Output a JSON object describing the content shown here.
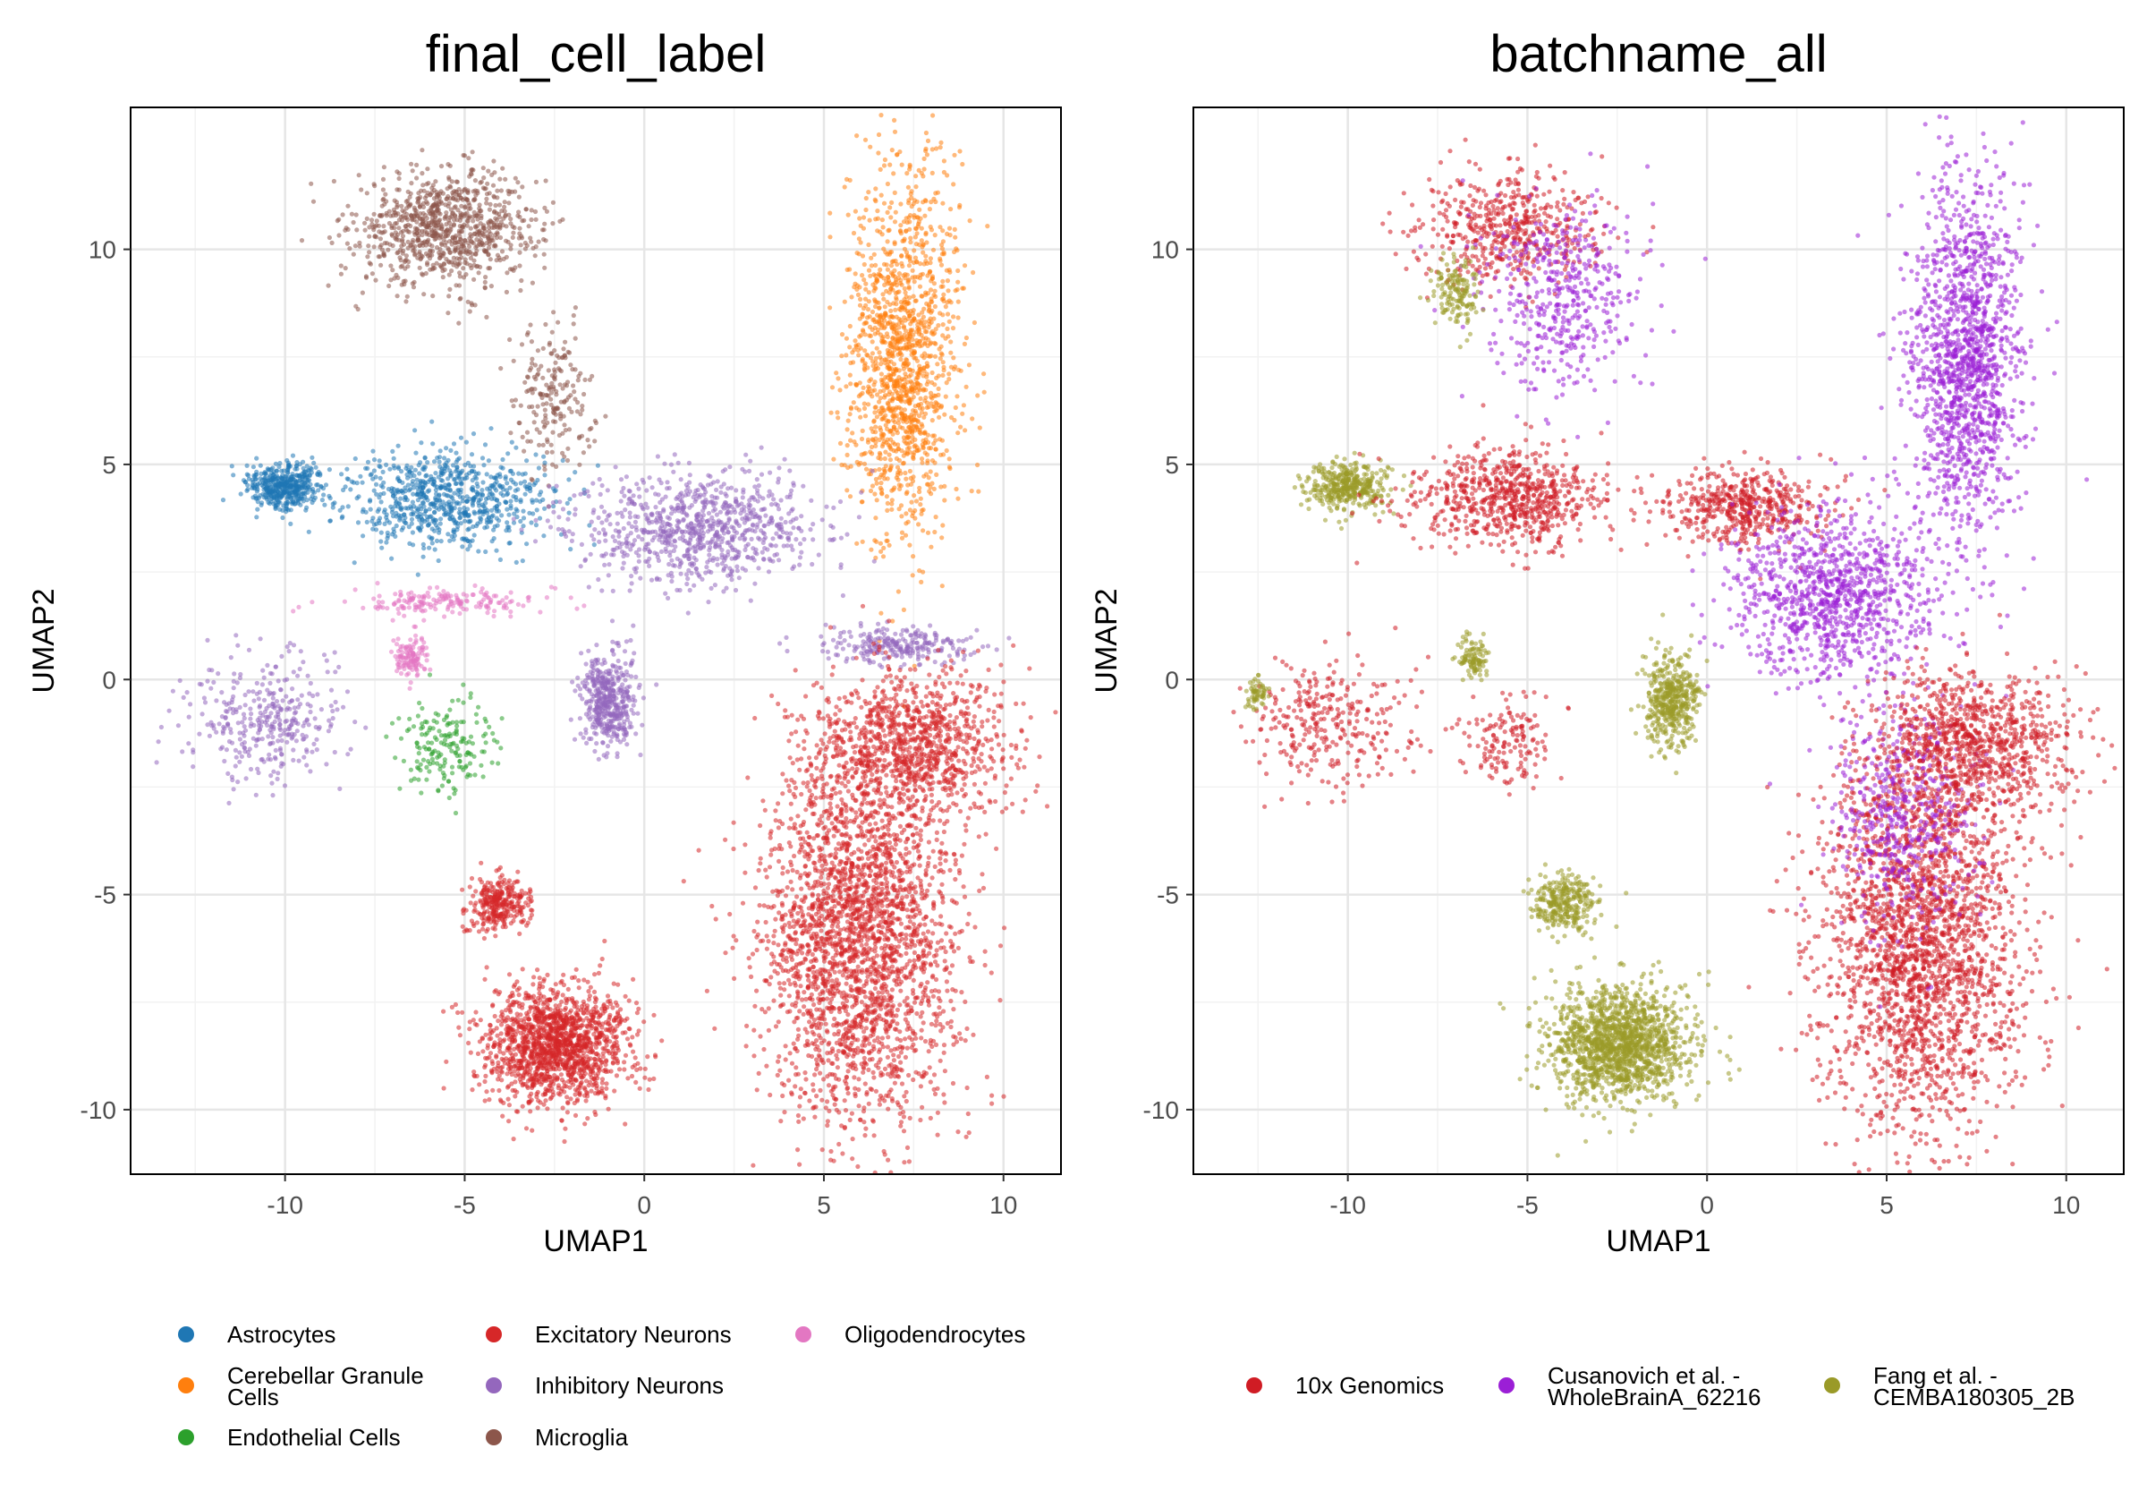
{
  "colors": {
    "Astrocytes": "#1f77b4",
    "Cerebellar Granule Cells": "#ff7f0e",
    "Endothelial Cells": "#2ca02c",
    "Excitatory Neurons": "#d62728",
    "Inhibitory Neurons": "#9467bd",
    "Microglia": "#8c564b",
    "Oligodendrocytes": "#e377c2",
    "10x Genomics": "#d01c24",
    "Cusanovich": "#9b1fd6",
    "Fang": "#9a9a28"
  },
  "chart_data": [
    {
      "type": "scatter",
      "title": "final_cell_label",
      "xlabel": "UMAP1",
      "ylabel": "UMAP2",
      "xlim": [
        -14.3,
        11.6
      ],
      "ylim": [
        -11.5,
        13.3
      ],
      "xticks": [
        -10,
        -5,
        0,
        5,
        10
      ],
      "yticks": [
        -10,
        -5,
        0,
        5,
        10
      ],
      "xtick_labels": [
        "-10",
        "-5",
        "0",
        "5",
        "10"
      ],
      "ytick_labels": [
        "-10",
        "-5",
        "0",
        "5",
        "10"
      ],
      "grid": true,
      "legend_position": "bottom",
      "legend": [
        {
          "label": "Astrocytes",
          "color": "#1f77b4"
        },
        {
          "label": "Cerebellar Granule Cells",
          "color": "#ff7f0e"
        },
        {
          "label": "Endothelial Cells",
          "color": "#2ca02c"
        },
        {
          "label": "Excitatory Neurons",
          "color": "#d62728"
        },
        {
          "label": "Inhibitory Neurons",
          "color": "#9467bd"
        },
        {
          "label": "Microglia",
          "color": "#8c564b"
        },
        {
          "label": "Oligodendrocytes",
          "color": "#e377c2"
        }
      ],
      "clusters": [
        {
          "label": "Microglia",
          "center": [
            -5.5,
            10.5
          ],
          "spread": [
            2.3,
            1.2
          ],
          "n": 900
        },
        {
          "label": "Microglia",
          "center": [
            -2.5,
            6.5
          ],
          "spread": [
            1.0,
            1.5
          ],
          "n": 200
        },
        {
          "label": "Astrocytes",
          "center": [
            -10,
            4.5
          ],
          "spread": [
            1.0,
            0.5
          ],
          "n": 450
        },
        {
          "label": "Astrocytes",
          "center": [
            -5.5,
            4.2
          ],
          "spread": [
            2.5,
            1.0
          ],
          "n": 750
        },
        {
          "label": "Cerebellar Granule Cells",
          "center": [
            7.2,
            7.5
          ],
          "spread": [
            1.4,
            3.8
          ],
          "n": 1400
        },
        {
          "label": "Inhibitory Neurons",
          "center": [
            -10.5,
            -1
          ],
          "spread": [
            2.0,
            1.3
          ],
          "n": 350
        },
        {
          "label": "Inhibitory Neurons",
          "center": [
            1.5,
            3.5
          ],
          "spread": [
            3.0,
            1.2
          ],
          "n": 850
        },
        {
          "label": "Inhibitory Neurons",
          "center": [
            -1,
            -0.5
          ],
          "spread": [
            0.7,
            1.0
          ],
          "n": 450
        },
        {
          "label": "Inhibitory Neurons",
          "center": [
            7,
            0.8
          ],
          "spread": [
            2.0,
            0.4
          ],
          "n": 250
        },
        {
          "label": "Oligodendrocytes",
          "center": [
            -5.5,
            1.8
          ],
          "spread": [
            2.5,
            0.3
          ],
          "n": 180
        },
        {
          "label": "Oligodendrocytes",
          "center": [
            -6.5,
            0.5
          ],
          "spread": [
            0.4,
            0.4
          ],
          "n": 120
        },
        {
          "label": "Endothelial Cells",
          "center": [
            -5.5,
            -1.5
          ],
          "spread": [
            1.2,
            1.0
          ],
          "n": 180
        },
        {
          "label": "Excitatory Neurons",
          "center": [
            -2.5,
            -8.5
          ],
          "spread": [
            1.8,
            1.2
          ],
          "n": 1500
        },
        {
          "label": "Excitatory Neurons",
          "center": [
            -4,
            -5.2
          ],
          "spread": [
            0.8,
            0.6
          ],
          "n": 300
        },
        {
          "label": "Excitatory Neurons",
          "center": [
            6,
            -6
          ],
          "spread": [
            2.5,
            4.0
          ],
          "n": 2600
        },
        {
          "label": "Excitatory Neurons",
          "center": [
            7.5,
            -1.5
          ],
          "spread": [
            2.5,
            1.5
          ],
          "n": 1000
        }
      ]
    },
    {
      "type": "scatter",
      "title": "batchname_all",
      "xlabel": "UMAP1",
      "ylabel": "UMAP2",
      "xlim": [
        -14.3,
        11.6
      ],
      "ylim": [
        -11.5,
        13.3
      ],
      "xticks": [
        -10,
        -5,
        0,
        5,
        10
      ],
      "yticks": [
        -10,
        -5,
        0,
        5,
        10
      ],
      "xtick_labels": [
        "-10",
        "-5",
        "0",
        "5",
        "10"
      ],
      "ytick_labels": [
        "-10",
        "-5",
        "0",
        "5",
        "10"
      ],
      "grid": true,
      "legend_position": "bottom",
      "legend": [
        {
          "label": "10x Genomics",
          "color": "#d01c24"
        },
        {
          "label": "Cusanovich et al. - WholeBrainA_62216",
          "color": "#9b1fd6"
        },
        {
          "label": "Fang et al. - CEMBA180305_2B",
          "color": "#9a9a28"
        }
      ],
      "clusters": [
        {
          "label": "10x Genomics",
          "center": [
            -5.5,
            10.5
          ],
          "spread": [
            2.3,
            1.2
          ],
          "n": 500
        },
        {
          "label": "Cusanovich",
          "center": [
            -4,
            9
          ],
          "spread": [
            2.0,
            2.0
          ],
          "n": 450
        },
        {
          "label": "Fang",
          "center": [
            -7,
            9
          ],
          "spread": [
            0.6,
            0.8
          ],
          "n": 150
        },
        {
          "label": "Fang",
          "center": [
            -10,
            4.5
          ],
          "spread": [
            1.0,
            0.5
          ],
          "n": 400
        },
        {
          "label": "10x Genomics",
          "center": [
            -5.5,
            4.2
          ],
          "spread": [
            2.5,
            1.0
          ],
          "n": 700
        },
        {
          "label": "Cusanovich",
          "center": [
            7.2,
            7.5
          ],
          "spread": [
            1.4,
            3.8
          ],
          "n": 1400
        },
        {
          "label": "10x Genomics",
          "center": [
            -10.5,
            -1
          ],
          "spread": [
            2.0,
            1.3
          ],
          "n": 300
        },
        {
          "label": "Fang",
          "center": [
            -12.5,
            -0.3
          ],
          "spread": [
            0.3,
            0.4
          ],
          "n": 60
        },
        {
          "label": "10x Genomics",
          "center": [
            1.0,
            4.0
          ],
          "spread": [
            2.0,
            0.8
          ],
          "n": 500
        },
        {
          "label": "Cusanovich",
          "center": [
            3.5,
            2.0
          ],
          "spread": [
            2.5,
            1.8
          ],
          "n": 1000
        },
        {
          "label": "Fang",
          "center": [
            -1,
            -0.5
          ],
          "spread": [
            0.7,
            1.0
          ],
          "n": 450
        },
        {
          "label": "Fang",
          "center": [
            -6.5,
            0.5
          ],
          "spread": [
            0.4,
            0.4
          ],
          "n": 100
        },
        {
          "label": "10x Genomics",
          "center": [
            -5.5,
            -1.5
          ],
          "spread": [
            1.2,
            1.0
          ],
          "n": 150
        },
        {
          "label": "Fang",
          "center": [
            -2.5,
            -8.5
          ],
          "spread": [
            1.8,
            1.2
          ],
          "n": 1500
        },
        {
          "label": "Fang",
          "center": [
            -4,
            -5.2
          ],
          "spread": [
            0.8,
            0.6
          ],
          "n": 300
        },
        {
          "label": "10x Genomics",
          "center": [
            6,
            -6
          ],
          "spread": [
            2.5,
            4.0
          ],
          "n": 2400
        },
        {
          "label": "Cusanovich",
          "center": [
            5.5,
            -3
          ],
          "spread": [
            1.8,
            2.5
          ],
          "n": 500
        },
        {
          "label": "10x Genomics",
          "center": [
            7.5,
            -1.5
          ],
          "spread": [
            2.5,
            1.5
          ],
          "n": 900
        }
      ]
    }
  ]
}
